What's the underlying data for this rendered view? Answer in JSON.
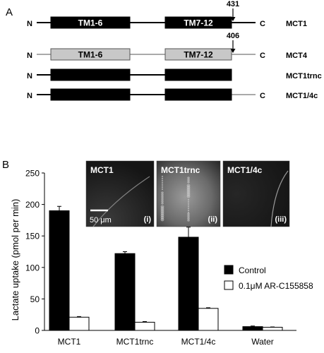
{
  "panel_a": {
    "label": "A",
    "constructs": [
      {
        "name": "MCT1",
        "n_label": "N",
        "c_label": "C",
        "line_color": "#000000",
        "blocks": [
          {
            "label": "TM1-6",
            "fill": "#000000",
            "text_color": "#ffffff"
          },
          {
            "label": "TM7-12",
            "fill": "#000000",
            "text_color": "#ffffff"
          }
        ],
        "marker": "431"
      },
      {
        "name": "MCT4",
        "n_label": "N",
        "c_label": "C",
        "line_color": "#aaaaaa",
        "blocks": [
          {
            "label": "TM1-6",
            "fill": "#c8c8c8",
            "text_color": "#000000"
          },
          {
            "label": "TM7-12",
            "fill": "#c8c8c8",
            "text_color": "#000000"
          }
        ],
        "marker": "406"
      },
      {
        "name": "MCT1trnc",
        "n_label": "N",
        "c_label": "",
        "line_color": "#000000",
        "blocks": [
          {
            "label": "",
            "fill": "#000000",
            "text_color": "#ffffff"
          },
          {
            "label": "",
            "fill": "#000000",
            "text_color": "#ffffff"
          }
        ],
        "marker": ""
      },
      {
        "name": "MCT1/4c",
        "n_label": "N",
        "c_label": "C",
        "line_color": "#000000",
        "blocks": [
          {
            "label": "",
            "fill": "#000000",
            "text_color": "#ffffff"
          },
          {
            "label": "",
            "fill": "#000000",
            "text_color": "#ffffff"
          }
        ],
        "marker": ""
      }
    ]
  },
  "panel_b": {
    "label": "B",
    "micrographs": [
      {
        "title": "MCT1",
        "index": "(i)",
        "scale_bar": "50 μm"
      },
      {
        "title": "MCT1trnc",
        "index": "(ii)",
        "scale_bar": ""
      },
      {
        "title": "MCT1/4c",
        "index": "(iii)",
        "scale_bar": ""
      }
    ]
  },
  "chart_data": {
    "type": "bar",
    "categories": [
      "MCT1",
      "MCT1trnc",
      "MCT1/4c",
      "Water"
    ],
    "series": [
      {
        "name": "Control",
        "values": [
          190,
          122,
          148,
          6
        ],
        "errors": [
          7,
          3,
          16,
          1
        ],
        "color": "#000000"
      },
      {
        "name": "0.1μM AR-C155858",
        "values": [
          21,
          13,
          35,
          5
        ],
        "errors": [
          1,
          1,
          1,
          0.5
        ],
        "color": "#ffffff"
      }
    ],
    "ylabel": "Lactate uptake (pmol per min)",
    "ylim": [
      0,
      250
    ],
    "yticks": [
      0,
      50,
      100,
      150,
      200,
      250
    ],
    "legend_placement": "right"
  }
}
